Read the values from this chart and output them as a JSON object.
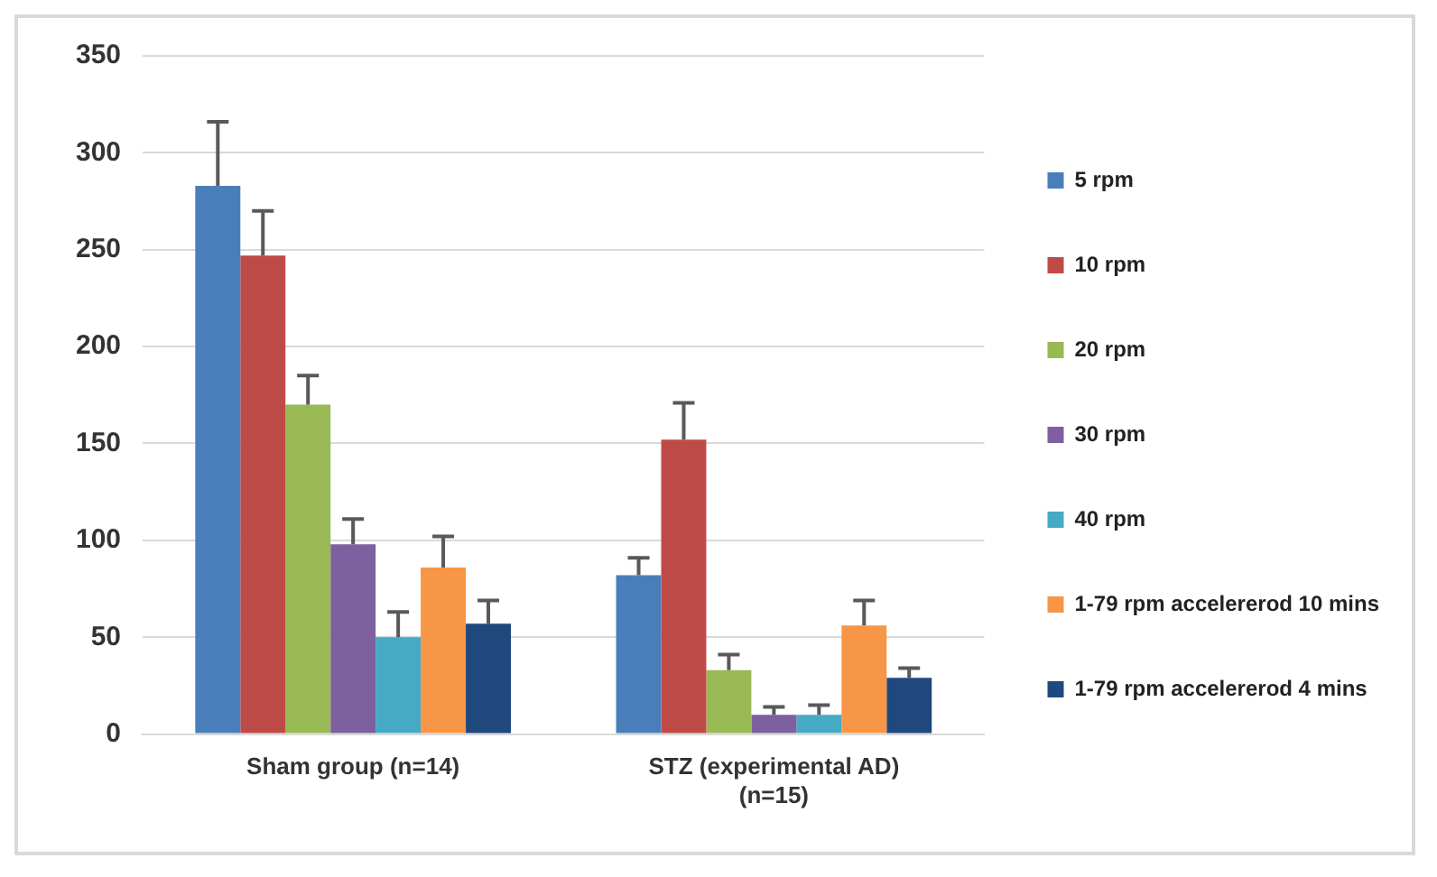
{
  "chart_data": {
    "type": "bar",
    "categories": [
      "Sham group (n=14)",
      "STZ (experimental AD) (n=15)"
    ],
    "series": [
      {
        "name": "5 rpm",
        "color": "#4a7ebb",
        "values": [
          283,
          82
        ],
        "errors": [
          [
            283,
            316
          ],
          [
            82,
            91
          ]
        ]
      },
      {
        "name": "10 rpm",
        "color": "#be4b48",
        "values": [
          247,
          152
        ],
        "errors": [
          [
            247,
            270
          ],
          [
            152,
            171
          ]
        ]
      },
      {
        "name": "20 rpm",
        "color": "#98b954",
        "values": [
          170,
          33
        ],
        "errors": [
          [
            170,
            185
          ],
          [
            33,
            41
          ]
        ]
      },
      {
        "name": "30 rpm",
        "color": "#7d60a0",
        "values": [
          98,
          10
        ],
        "errors": [
          [
            98,
            111
          ],
          [
            10,
            14
          ]
        ]
      },
      {
        "name": "40 rpm",
        "color": "#46aac5",
        "values": [
          50,
          10
        ],
        "errors": [
          [
            50,
            63
          ],
          [
            10,
            15
          ]
        ]
      },
      {
        "name": "1-79 rpm accelererod 10 mins",
        "color": "#f79646",
        "values": [
          86,
          56
        ],
        "errors": [
          [
            86,
            102
          ],
          [
            56,
            69
          ]
        ]
      },
      {
        "name": "1-79 rpm accelererod 4 mins",
        "color": "#1f497d",
        "values": [
          57,
          29
        ],
        "errors": [
          [
            57,
            69
          ],
          [
            29,
            34
          ]
        ]
      }
    ],
    "ylim": [
      0,
      350
    ],
    "yticks": [
      0,
      50,
      100,
      150,
      200,
      250,
      300,
      350
    ],
    "grid": "y",
    "legend": "right"
  }
}
